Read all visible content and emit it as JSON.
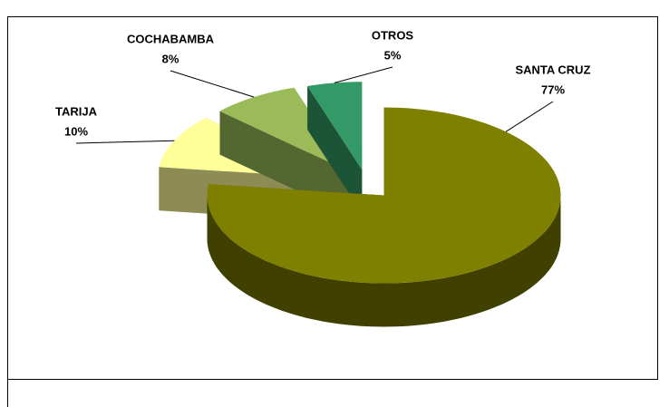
{
  "chart_data": {
    "type": "pie3d",
    "categories": [
      "SANTA CRUZ",
      "TARIJA",
      "COCHABAMBA",
      "OTROS"
    ],
    "values": [
      77,
      10,
      8,
      5
    ],
    "value_labels": [
      "77%",
      "10%",
      "8%",
      "5%"
    ],
    "colors": [
      "#808000",
      "#ffff99",
      "#9bbb59",
      "#339966"
    ]
  }
}
